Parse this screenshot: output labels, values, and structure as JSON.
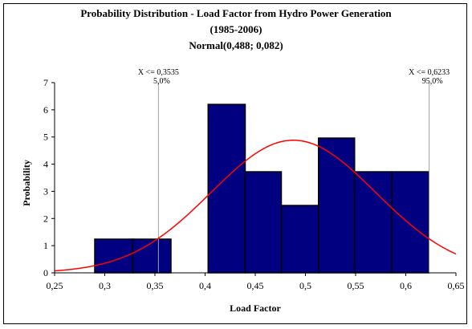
{
  "chart_data": {
    "type": "bar",
    "title_lines": [
      "Probability Distribution - Load Factor from Hydro Power Generation",
      "(1985-2006)",
      "Normal(0,488; 0,082)"
    ],
    "xlabel": "Load Factor",
    "ylabel": "Probability",
    "xlim": [
      0.25,
      0.65
    ],
    "ylim": [
      0,
      7
    ],
    "x_ticks": [
      0.25,
      0.3,
      0.35,
      0.4,
      0.45,
      0.5,
      0.55,
      0.6,
      0.65
    ],
    "x_tick_labels": [
      "0,25",
      "0,3",
      "0,35",
      "0,4",
      "0,45",
      "0,5",
      "0,55",
      "0,6",
      "0,65"
    ],
    "y_ticks": [
      0,
      1,
      2,
      3,
      4,
      5,
      6,
      7
    ],
    "y_tick_labels": [
      "0",
      "1",
      "2",
      "3",
      "4",
      "5",
      "6",
      "7"
    ],
    "bins": [
      {
        "x0": 0.29,
        "x1": 0.328,
        "value": 1.24
      },
      {
        "x0": 0.328,
        "x1": 0.366,
        "value": 1.24
      },
      {
        "x0": 0.366,
        "x1": 0.403,
        "value": 0
      },
      {
        "x0": 0.403,
        "x1": 0.44,
        "value": 6.2
      },
      {
        "x0": 0.44,
        "x1": 0.476,
        "value": 3.72
      },
      {
        "x0": 0.476,
        "x1": 0.513,
        "value": 2.48
      },
      {
        "x0": 0.513,
        "x1": 0.549,
        "value": 4.96
      },
      {
        "x0": 0.549,
        "x1": 0.586,
        "value": 3.72
      },
      {
        "x0": 0.586,
        "x1": 0.623,
        "value": 3.72
      }
    ],
    "fit": {
      "distribution": "normal",
      "mean": 0.488,
      "sd": 0.082
    },
    "markers": [
      {
        "x": 0.3535,
        "label": "X <= 0,3535",
        "pct": "5,0%"
      },
      {
        "x": 0.6233,
        "label": "X <= 0,6233",
        "pct": "95,0%"
      }
    ],
    "bar_color": "#000080",
    "curve_color": "#ff0000",
    "grid": false
  }
}
